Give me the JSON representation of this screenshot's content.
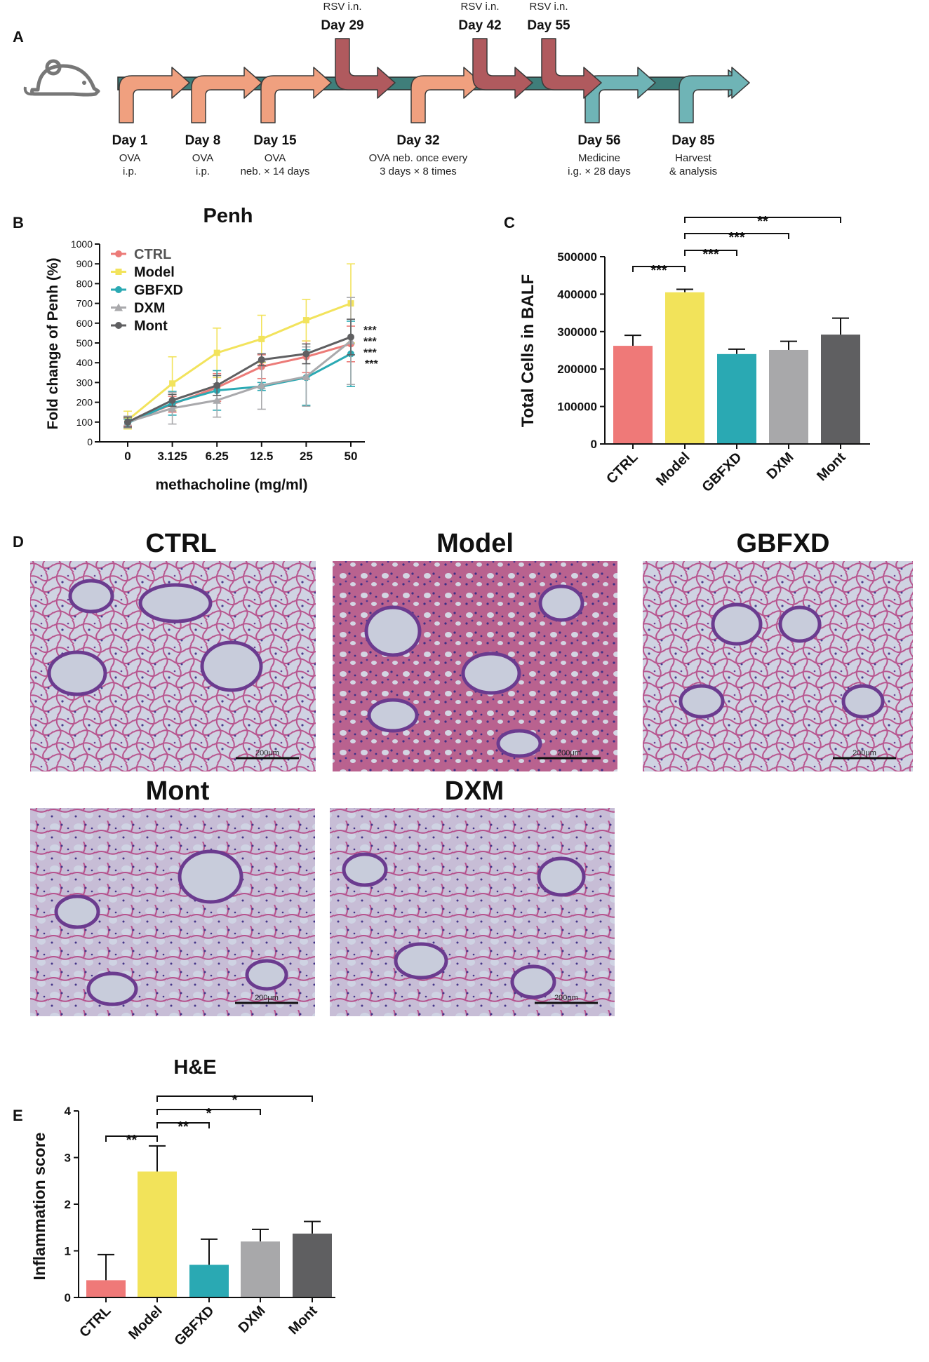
{
  "panel_letters": [
    "A",
    "B",
    "C",
    "D",
    "E"
  ],
  "timeline": {
    "top_events": [
      {
        "label": "RSV i.n.",
        "day": "Day 29"
      },
      {
        "label": "RSV i.n.",
        "day": "Day 42"
      },
      {
        "label": "RSV i.n.",
        "day": "Day 55"
      }
    ],
    "bottom_events": [
      {
        "day": "Day 1",
        "line1": "OVA",
        "line2": "i.p."
      },
      {
        "day": "Day 8",
        "line1": "OVA",
        "line2": "i.p."
      },
      {
        "day": "Day 15",
        "line1": "OVA",
        "line2": "neb. × 14 days"
      },
      {
        "day": "Day 32",
        "line1": "OVA neb. once every",
        "line2": "3 days × 8 times"
      },
      {
        "day": "Day 56",
        "line1": "Medicine",
        "line2": "i.g. × 28 days"
      },
      {
        "day": "Day 85",
        "line1": "Harvest",
        "line2": "& analysis"
      }
    ],
    "icon": "mouse-icon",
    "colors": {
      "bar": "#3f7e7a",
      "ova": "#f0a07f",
      "rsv": "#b05a5e",
      "medicine": "#6fb4b6"
    }
  },
  "chart_data": [
    {
      "panel": "B",
      "type": "line",
      "title": "Penh",
      "xlabel": "methacholine (mg/ml)",
      "ylabel": "Fold change of Penh (%)",
      "categories": [
        "0",
        "3.125",
        "6.25",
        "12.5",
        "25",
        "50"
      ],
      "ylim": [
        0,
        1000
      ],
      "yticks": [
        "0",
        "100",
        "200",
        "300",
        "400",
        "500",
        "600",
        "700",
        "800",
        "900",
        "1000"
      ],
      "legend_position": "top-left",
      "series": [
        {
          "name": "CTRL",
          "color": "#ec7b78",
          "marker": "circle",
          "values": [
            100,
            190,
            275,
            380,
            430,
            495
          ],
          "errors": [
            20,
            40,
            70,
            60,
            80,
            90
          ]
        },
        {
          "name": "Model",
          "color": "#f2e35c",
          "marker": "square",
          "values": [
            110,
            295,
            450,
            520,
            615,
            700
          ],
          "errors": [
            45,
            135,
            125,
            120,
            105,
            200
          ]
        },
        {
          "name": "GBFXD",
          "color": "#2aa9b3",
          "marker": "circle",
          "values": [
            95,
            195,
            260,
            280,
            325,
            445
          ],
          "errors": [
            20,
            60,
            100,
            20,
            140,
            165
          ]
        },
        {
          "name": "DXM",
          "color": "#a9a9ac",
          "marker": "triangle",
          "values": [
            100,
            170,
            210,
            285,
            330,
            510
          ],
          "errors": [
            30,
            80,
            85,
            120,
            150,
            220
          ]
        },
        {
          "name": "Mont",
          "color": "#5f5f61",
          "marker": "circle",
          "values": [
            100,
            210,
            285,
            415,
            445,
            530
          ],
          "errors": [
            25,
            30,
            50,
            30,
            50,
            90
          ]
        }
      ],
      "significance": [
        "***",
        "***",
        "***",
        "***"
      ]
    },
    {
      "panel": "C",
      "type": "bar",
      "ylabel": "Total Cells in BALF",
      "categories": [
        "CTRL",
        "Model",
        "GBFXD",
        "DXM",
        "Mont"
      ],
      "values": [
        262000,
        405000,
        240000,
        251000,
        292000
      ],
      "errors": [
        28000,
        8000,
        13000,
        23000,
        44000
      ],
      "colors": [
        "#ef7978",
        "#f2e35a",
        "#2aa9b3",
        "#a8a8aa",
        "#5f5f61"
      ],
      "ylim": [
        0,
        500000
      ],
      "yticks": [
        "0",
        "100000",
        "200000",
        "300000",
        "400000",
        "500000"
      ],
      "brackets": [
        {
          "from": 0,
          "to": 1,
          "label": "***"
        },
        {
          "from": 1,
          "to": 2,
          "label": "***"
        },
        {
          "from": 1,
          "to": 3,
          "label": "***"
        },
        {
          "from": 1,
          "to": 4,
          "label": "**"
        }
      ]
    },
    {
      "panel": "E",
      "type": "bar",
      "title": "H&E",
      "ylabel": "Inflammation score",
      "categories": [
        "CTRL",
        "Model",
        "GBFXD",
        "DXM",
        "Mont"
      ],
      "values": [
        0.37,
        2.7,
        0.7,
        1.2,
        1.37
      ],
      "errors": [
        0.55,
        0.55,
        0.55,
        0.26,
        0.26
      ],
      "colors": [
        "#ef7978",
        "#f2e35a",
        "#2aa9b3",
        "#a8a8aa",
        "#5f5f61"
      ],
      "ylim": [
        0,
        4
      ],
      "yticks": [
        "0",
        "1",
        "2",
        "3",
        "4"
      ],
      "brackets": [
        {
          "from": 0,
          "to": 1,
          "label": "**"
        },
        {
          "from": 1,
          "to": 2,
          "label": "**"
        },
        {
          "from": 1,
          "to": 3,
          "label": "*"
        },
        {
          "from": 1,
          "to": 4,
          "label": "*"
        }
      ]
    }
  ],
  "histology": {
    "panels": [
      {
        "label": "CTRL",
        "scale": "200μm"
      },
      {
        "label": "Model",
        "scale": "200μm"
      },
      {
        "label": "GBFXD",
        "scale": "200μm"
      },
      {
        "label": "Mont",
        "scale": "200μm"
      },
      {
        "label": "DXM",
        "scale": "200μm"
      }
    ]
  }
}
